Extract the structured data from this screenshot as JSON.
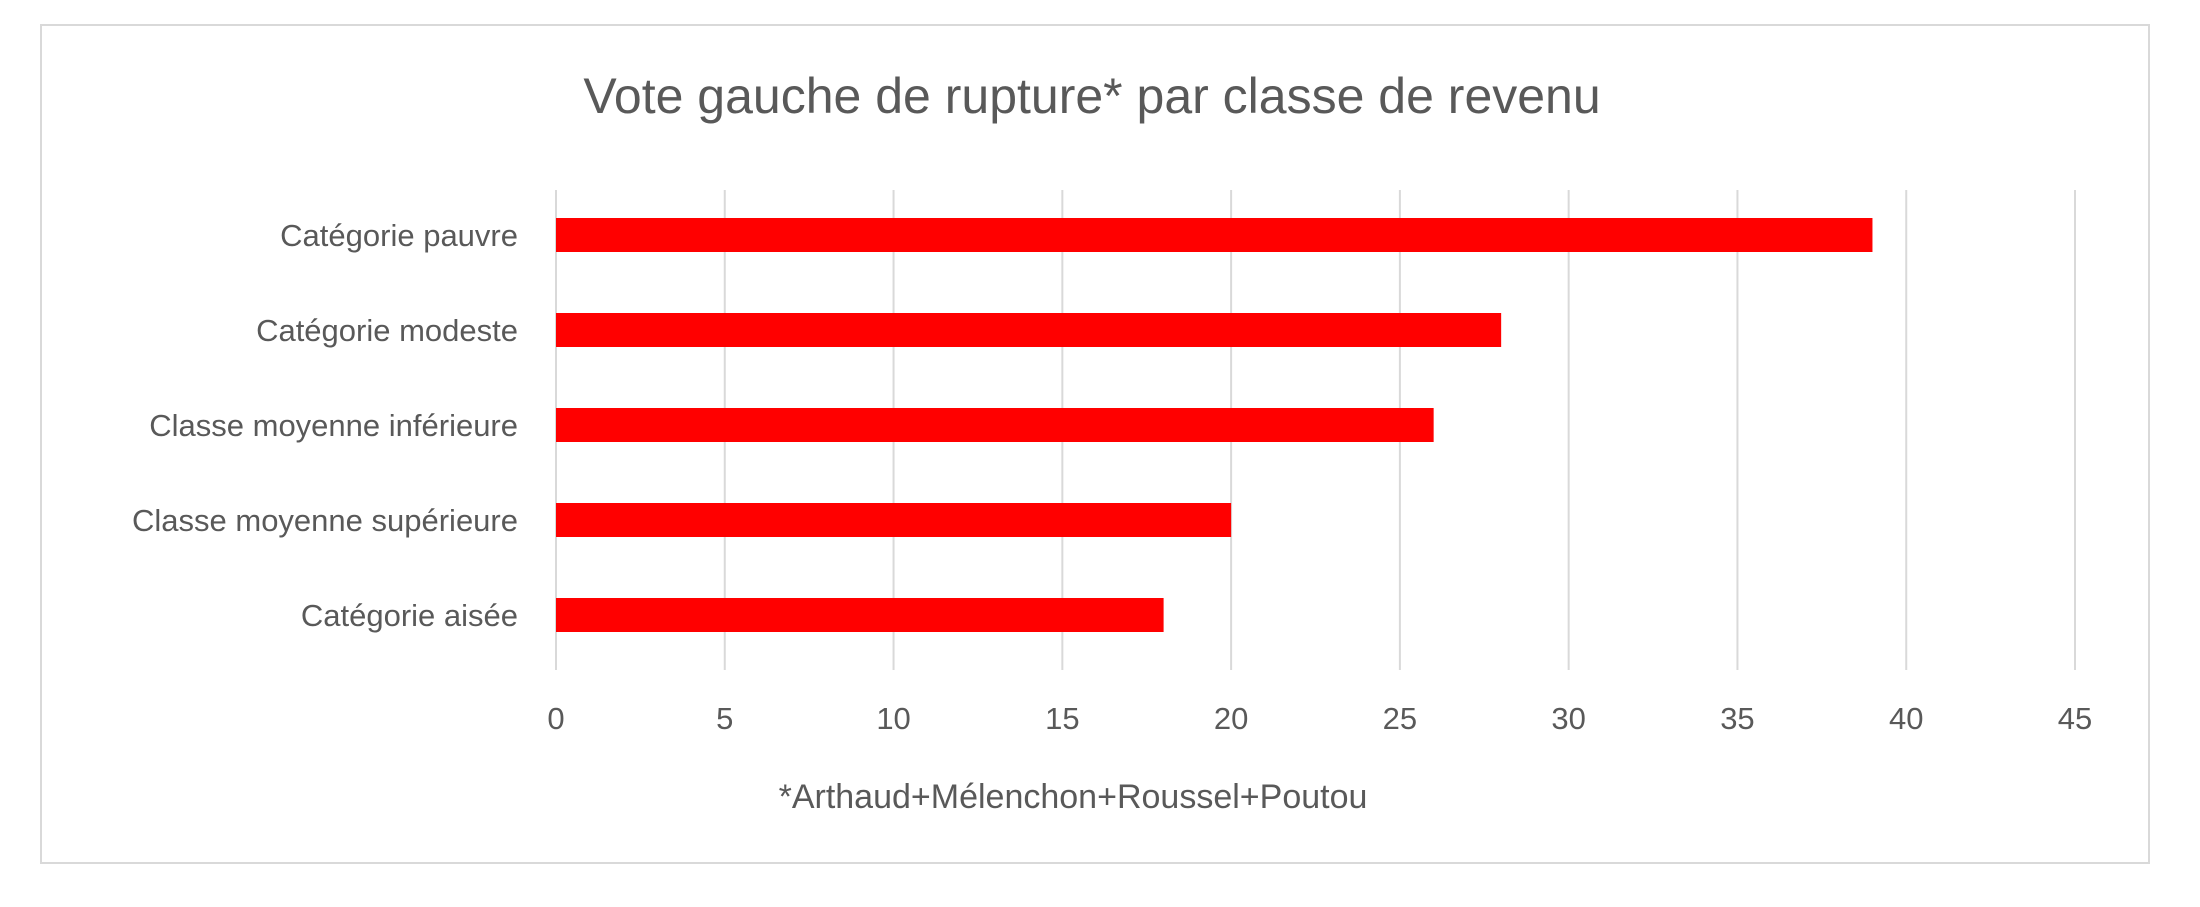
{
  "chart_data": {
    "type": "bar",
    "orientation": "horizontal",
    "title": "Vote gauche de rupture* par classe de revenu",
    "xlabel": "*Arthaud+Mélenchon+Roussel+Poutou",
    "ylabel": "",
    "categories": [
      "Catégorie pauvre",
      "Catégorie modeste",
      "Classe moyenne inférieure",
      "Classe moyenne supérieure",
      "Catégorie aisée"
    ],
    "values": [
      39,
      28,
      26,
      20,
      18
    ],
    "xlim": [
      0,
      45
    ],
    "xticks": [
      "0",
      "5",
      "10",
      "15",
      "20",
      "25",
      "30",
      "35",
      "40",
      "45"
    ],
    "grid": "vertical",
    "legend": "none",
    "bar_color": "#ff0000"
  }
}
